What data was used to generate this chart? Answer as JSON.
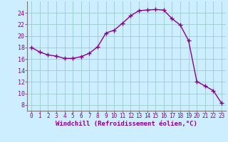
{
  "x": [
    0,
    1,
    2,
    3,
    4,
    5,
    6,
    7,
    8,
    9,
    10,
    11,
    12,
    13,
    14,
    15,
    16,
    17,
    18,
    19,
    20,
    21,
    22,
    23
  ],
  "y": [
    18,
    17.2,
    16.7,
    16.5,
    16.1,
    16.1,
    16.4,
    17.0,
    18.1,
    20.5,
    21.0,
    22.2,
    23.5,
    24.4,
    24.5,
    24.6,
    24.5,
    23.0,
    21.9,
    19.2,
    12.1,
    11.3,
    10.5,
    8.3
  ],
  "line_color": "#8B008B",
  "marker": "+",
  "markersize": 4,
  "linewidth": 1.0,
  "xlabel": "Windchill (Refroidissement éolien,°C)",
  "xlabel_fontsize": 6.5,
  "bg_color": "#cceeff",
  "grid_color": "#99cccc",
  "xlim": [
    -0.5,
    23.5
  ],
  "ylim": [
    7,
    26
  ],
  "yticks": [
    8,
    10,
    12,
    14,
    16,
    18,
    20,
    22,
    24
  ],
  "xticks": [
    0,
    1,
    2,
    3,
    4,
    5,
    6,
    7,
    8,
    9,
    10,
    11,
    12,
    13,
    14,
    15,
    16,
    17,
    18,
    19,
    20,
    21,
    22,
    23
  ],
  "tick_fontsize": 5.5,
  "ytick_fontsize": 6.0
}
